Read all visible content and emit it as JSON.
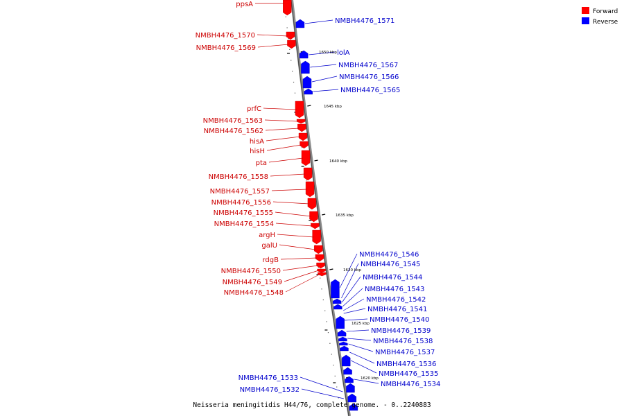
{
  "footer": "Neisseria meningitidis H44/76, complete genome. - 0..2240883",
  "legend": [
    {
      "label": "Forward",
      "color": "#ff0000"
    },
    {
      "label": "Reverse",
      "color": "#0000ff"
    }
  ],
  "colors": {
    "forward_text": "#cc0000",
    "reverse_text": "#0000cc"
  },
  "ticks": [
    "1650 kbp",
    "1645 kbp",
    "1640 kbp",
    "1635 kbp",
    "1630 kbp",
    "1625 kbp",
    "1620 kbp"
  ],
  "forward_labels": [
    "ppsA",
    "NMBH4476_1570",
    "NMBH4476_1569",
    "prfC",
    "NMBH4476_1563",
    "NMBH4476_1562",
    "hisA",
    "hisH",
    "pta",
    "NMBH4476_1558",
    "NMBH4476_1557",
    "NMBH4476_1556",
    "NMBH4476_1555",
    "NMBH4476_1554",
    "argH",
    "galU",
    "rdgB",
    "NMBH4476_1550",
    "NMBH4476_1549",
    "NMBH4476_1548"
  ],
  "reverse_labels": [
    "NMBH4476_1571",
    "lolA",
    "NMBH4476_1567",
    "NMBH4476_1566",
    "NMBH4476_1565",
    "NMBH4476_1546",
    "NMBH4476_1545",
    "NMBH4476_1544",
    "NMBH4476_1543",
    "NMBH4476_1542",
    "NMBH4476_1541",
    "NMBH4476_1540",
    "NMBH4476_1539",
    "NMBH4476_1538",
    "NMBH4476_1537",
    "NMBH4476_1536",
    "NMBH4476_1535",
    "NMBH4476_1534",
    "NMBH4476_1533",
    "NMBH4476_1532"
  ]
}
